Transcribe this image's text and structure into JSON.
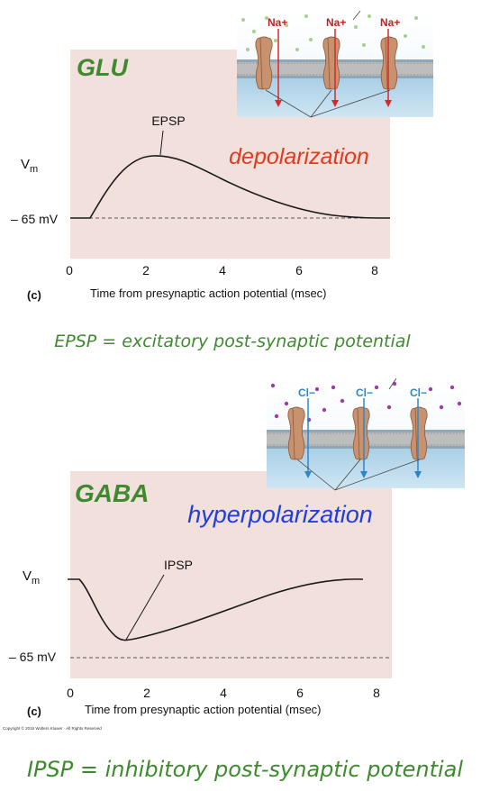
{
  "panels": [
    {
      "transmitter": "GLU",
      "effect": "depolarization",
      "potential_label": "EPSP",
      "ion_label": "Na+",
      "ion_sign": "+",
      "y_label": "V",
      "y_label_sub": "m",
      "baseline_label": "– 65 mV",
      "x_axis_title": "Time from presynaptic action potential (msec)",
      "panel_letter": "(c)",
      "x_ticks": [
        "0",
        "2",
        "4",
        "6",
        "8"
      ],
      "definition": "EPSP = excitatory post-synaptic potential"
    },
    {
      "transmitter": "GABA",
      "effect": "hyperpolarization",
      "potential_label": "IPSP",
      "ion_label": "Cl−",
      "ion_sign": "−",
      "y_label": "V",
      "y_label_sub": "m",
      "baseline_label": "– 65 mV",
      "x_axis_title": "Time from presynaptic action potential (msec)",
      "panel_letter": "(c)",
      "x_ticks": [
        "0",
        "2",
        "4",
        "6",
        "8"
      ],
      "definition": "IPSP = inhibitory post-synaptic potential"
    }
  ],
  "copyright": "Copyright © 2016 Wolters Kluwer · All Rights Reserved",
  "colors": {
    "plot_bg": "#f2e0dc",
    "transmitter": "#3e8a2e",
    "depolarization": "#e03a1f",
    "hyperpolarization": "#1f3ee0",
    "definition": "#3e8a2e",
    "na_arrow": "#d62a2a",
    "cl_arrow": "#2e86c9",
    "channel": "#c8926e"
  }
}
